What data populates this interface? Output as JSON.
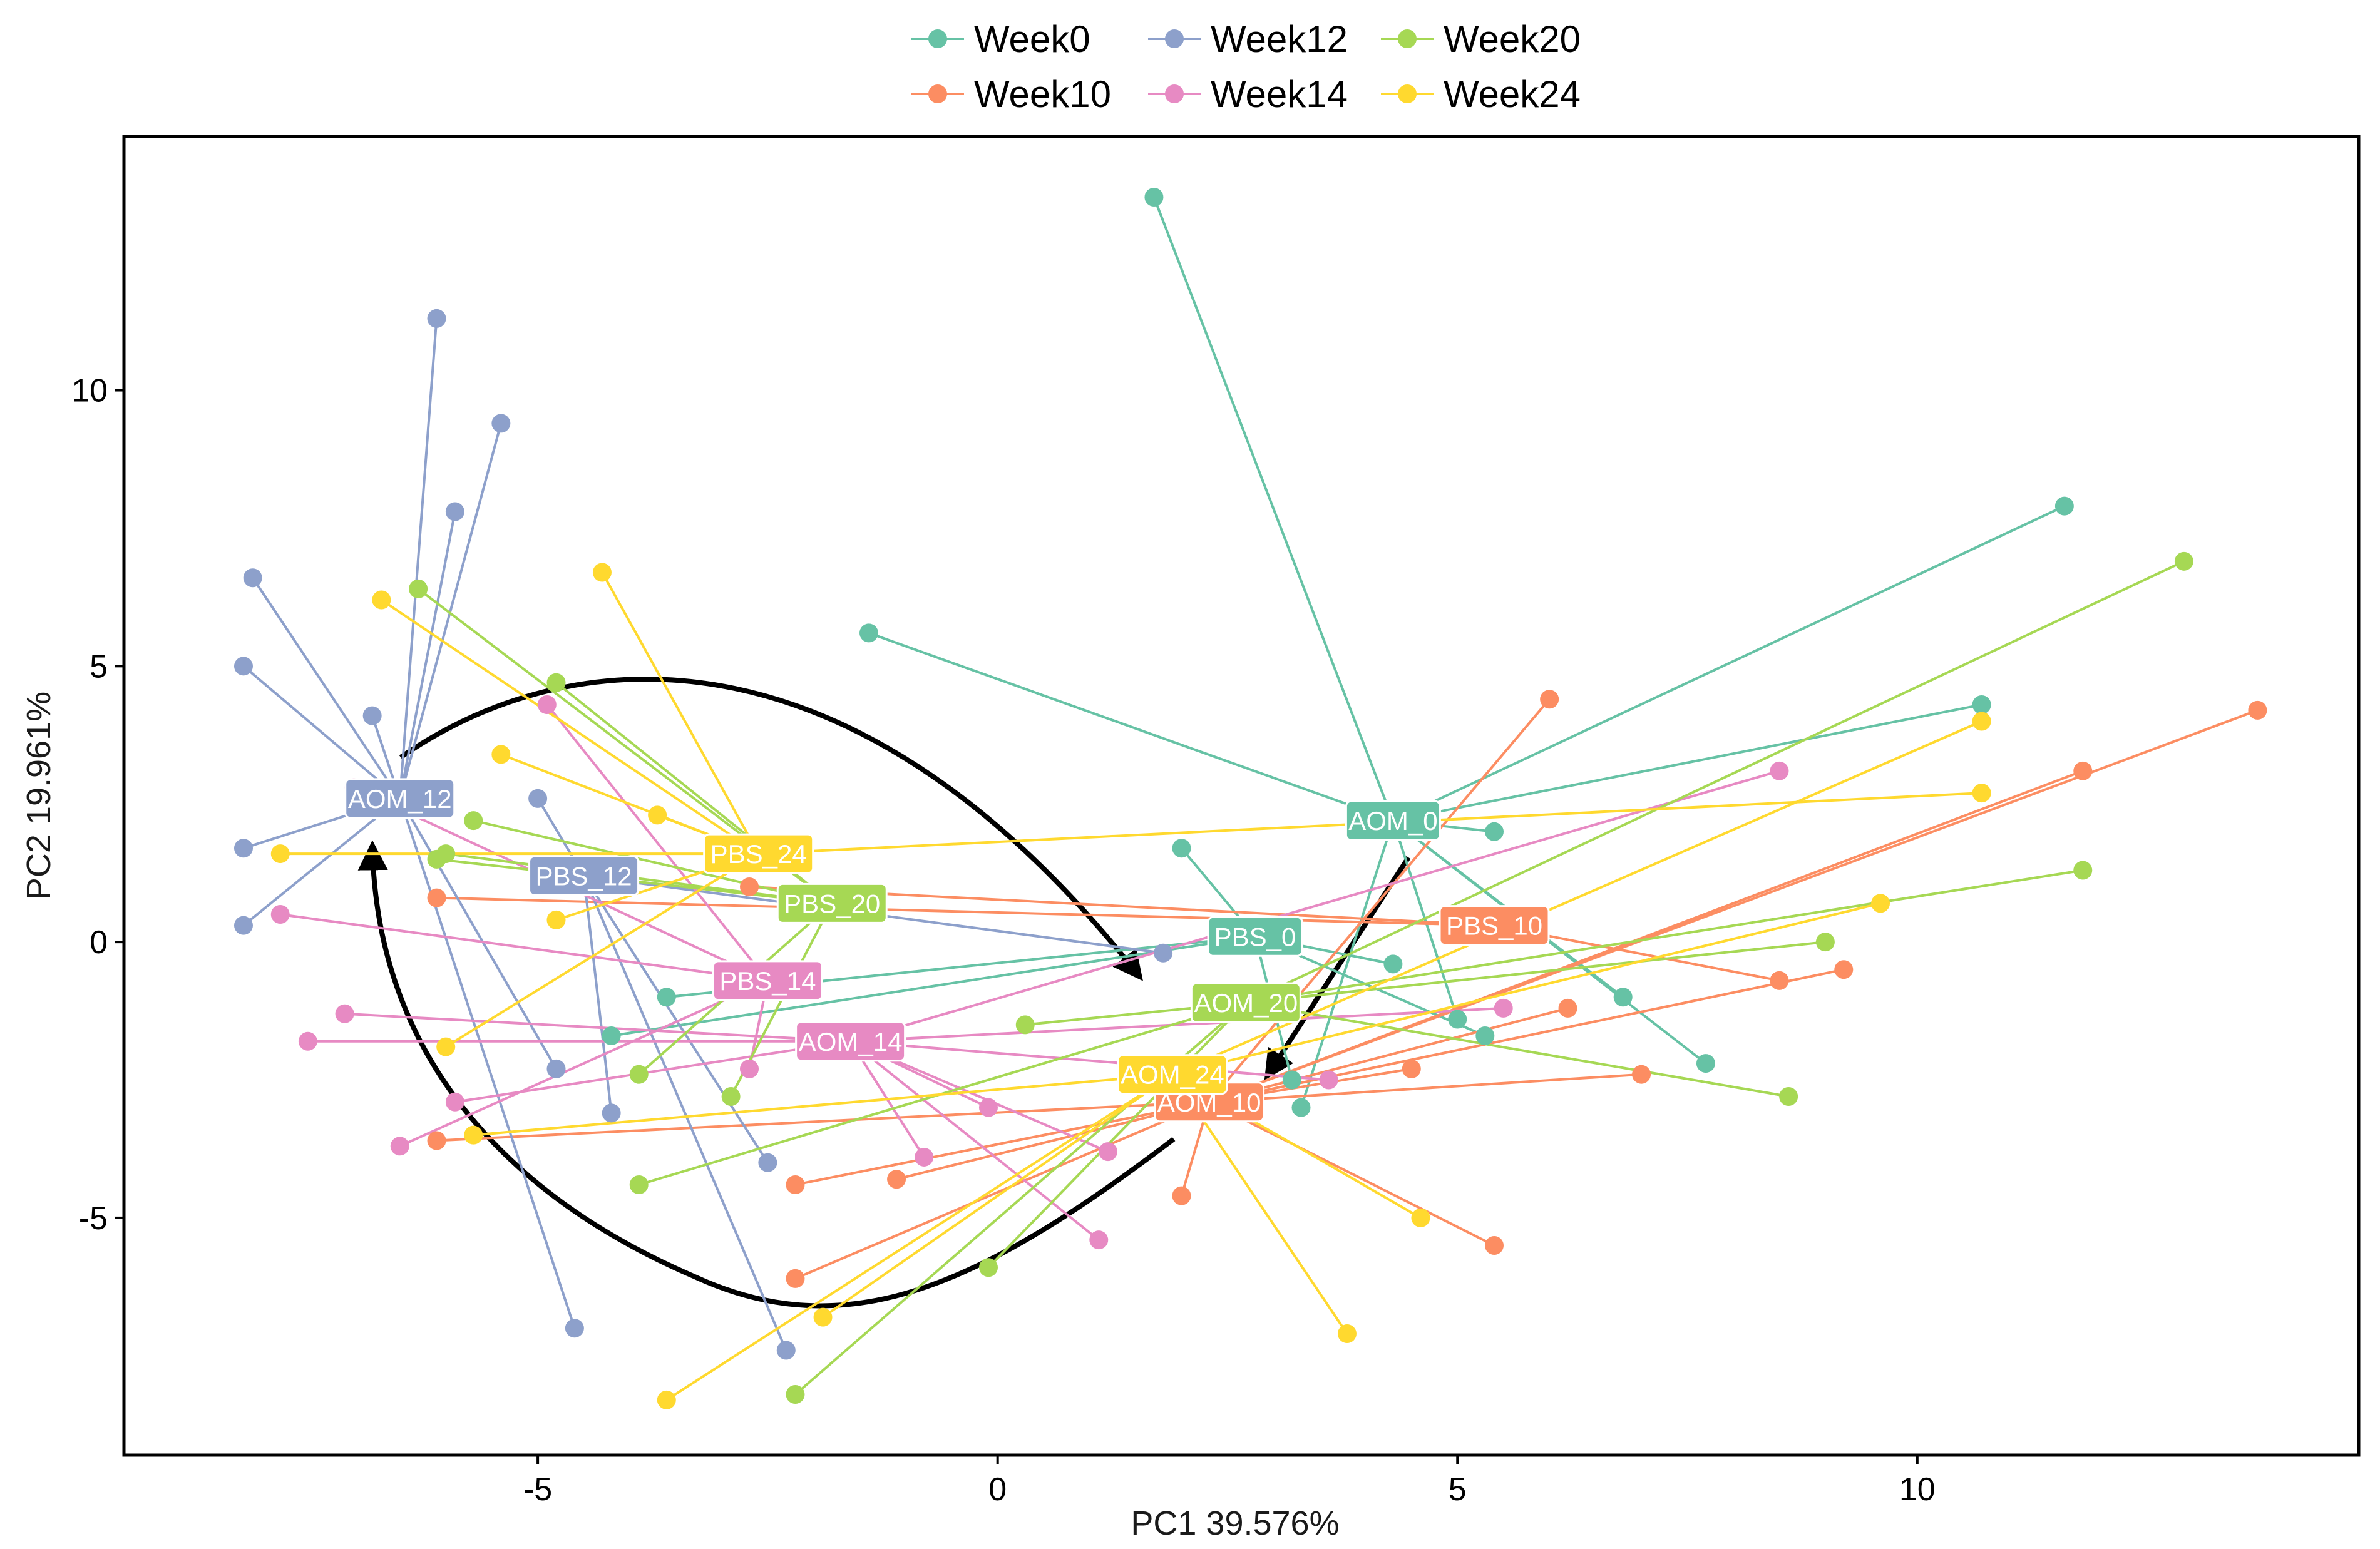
{
  "chart_data": {
    "type": "scatter",
    "subtype": "pca-spider",
    "xlabel": "PC1 39.576%",
    "ylabel": "PC2 19.961%",
    "xlim": [
      -9.5,
      14.8
    ],
    "ylim": [
      -9.3,
      14.6
    ],
    "xticks": [
      -5,
      0,
      5,
      10
    ],
    "yticks": [
      -5,
      0,
      5,
      10
    ],
    "grid": false,
    "legend_position": "top",
    "groups": [
      {
        "name": "Week0",
        "color": "#66C2A5"
      },
      {
        "name": "Week10",
        "color": "#FC8D62"
      },
      {
        "name": "Week12",
        "color": "#8DA0CB"
      },
      {
        "name": "Week14",
        "color": "#E78AC3"
      },
      {
        "name": "Week20",
        "color": "#A6D854"
      },
      {
        "name": "Week24",
        "color": "#FFD92F"
      }
    ],
    "centroids": [
      {
        "label": "AOM_0",
        "group": "Week0",
        "x": 4.3,
        "y": 2.2,
        "points": [
          [
            1.7,
            13.5
          ],
          [
            -1.4,
            5.6
          ],
          [
            11.6,
            7.9
          ],
          [
            10.7,
            4.3
          ],
          [
            5.4,
            2.0
          ],
          [
            6.8,
            -1.0
          ],
          [
            7.7,
            -2.2
          ],
          [
            5.0,
            -1.4
          ],
          [
            3.3,
            -3.0
          ]
        ]
      },
      {
        "label": "PBS_0",
        "group": "Week0",
        "x": 2.8,
        "y": 0.1,
        "points": [
          [
            2.0,
            1.7
          ],
          [
            -3.6,
            -1.0
          ],
          [
            -4.2,
            -1.7
          ],
          [
            5.3,
            -1.7
          ],
          [
            4.3,
            -0.4
          ],
          [
            3.2,
            -2.5
          ]
        ]
      },
      {
        "label": "AOM_10",
        "group": "Week10",
        "x": 2.3,
        "y": -2.9,
        "points": [
          [
            6.0,
            4.4
          ],
          [
            13.7,
            4.2
          ],
          [
            11.8,
            3.1
          ],
          [
            9.2,
            -0.5
          ],
          [
            6.2,
            -1.2
          ],
          [
            7.0,
            -2.4
          ],
          [
            4.5,
            -2.3
          ],
          [
            5.4,
            -5.5
          ],
          [
            2.0,
            -4.6
          ],
          [
            -2.2,
            -6.1
          ],
          [
            -2.2,
            -4.4
          ],
          [
            -1.1,
            -4.3
          ],
          [
            -6.1,
            -3.6
          ]
        ]
      },
      {
        "label": "PBS_10",
        "group": "Week10",
        "x": 5.4,
        "y": 0.3,
        "points": [
          [
            8.5,
            -0.7
          ],
          [
            -6.1,
            0.8
          ],
          [
            -2.7,
            1.0
          ]
        ]
      },
      {
        "label": "AOM_12",
        "group": "Week12",
        "x": -6.5,
        "y": 2.6,
        "points": [
          [
            -6.1,
            11.3
          ],
          [
            -5.4,
            9.4
          ],
          [
            -5.9,
            7.8
          ],
          [
            -8.1,
            6.6
          ],
          [
            -8.2,
            5.0
          ],
          [
            -6.8,
            4.1
          ],
          [
            -8.2,
            1.7
          ],
          [
            -8.2,
            0.3
          ],
          [
            -4.8,
            -2.3
          ],
          [
            -4.6,
            -7.0
          ]
        ]
      },
      {
        "label": "PBS_12",
        "group": "Week12",
        "x": -4.5,
        "y": 1.2,
        "points": [
          [
            -5.0,
            2.6
          ],
          [
            -4.2,
            -3.1
          ],
          [
            -2.5,
            -4.0
          ],
          [
            -2.3,
            -7.4
          ],
          [
            1.8,
            -0.2
          ]
        ]
      },
      {
        "label": "AOM_14",
        "group": "Week14",
        "x": -1.6,
        "y": -1.8,
        "points": [
          [
            8.5,
            3.1
          ],
          [
            5.5,
            -1.2
          ],
          [
            3.6,
            -2.5
          ],
          [
            1.2,
            -3.8
          ],
          [
            1.1,
            -5.4
          ],
          [
            -0.1,
            -3.0
          ],
          [
            -0.8,
            -3.9
          ],
          [
            -5.9,
            -2.9
          ],
          [
            -7.5,
            -1.8
          ],
          [
            -7.1,
            -1.3
          ]
        ]
      },
      {
        "label": "PBS_14",
        "group": "Week14",
        "x": -2.5,
        "y": -0.7,
        "points": [
          [
            -4.9,
            4.3
          ],
          [
            -7.0,
            2.8
          ],
          [
            -7.8,
            0.5
          ],
          [
            -6.5,
            -3.7
          ],
          [
            -2.7,
            -2.3
          ]
        ]
      },
      {
        "label": "AOM_20",
        "group": "Week20",
        "x": 2.7,
        "y": -1.1,
        "points": [
          [
            12.9,
            6.9
          ],
          [
            11.8,
            1.3
          ],
          [
            9.0,
            0.0
          ],
          [
            8.6,
            -2.8
          ],
          [
            0.3,
            -1.5
          ],
          [
            -0.1,
            -5.9
          ],
          [
            -2.2,
            -8.2
          ],
          [
            -3.9,
            -4.4
          ]
        ]
      },
      {
        "label": "PBS_20",
        "group": "Week20",
        "x": -1.8,
        "y": 0.7,
        "points": [
          [
            -6.3,
            6.4
          ],
          [
            -4.8,
            4.7
          ],
          [
            -5.7,
            2.2
          ],
          [
            -6.0,
            1.6
          ],
          [
            -6.1,
            1.5
          ],
          [
            -3.9,
            -2.4
          ],
          [
            -2.9,
            -2.8
          ]
        ]
      },
      {
        "label": "AOM_24",
        "group": "Week24",
        "x": 1.9,
        "y": -2.4,
        "points": [
          [
            10.7,
            4.0
          ],
          [
            9.6,
            0.7
          ],
          [
            4.6,
            -5.0
          ],
          [
            3.8,
            -7.1
          ],
          [
            -1.9,
            -6.8
          ],
          [
            -3.6,
            -8.3
          ],
          [
            -5.7,
            -3.5
          ]
        ]
      },
      {
        "label": "PBS_24",
        "group": "Week24",
        "x": -2.6,
        "y": 1.6,
        "points": [
          [
            -6.7,
            6.2
          ],
          [
            -4.3,
            6.7
          ],
          [
            -5.4,
            3.4
          ],
          [
            -3.7,
            2.3
          ],
          [
            -7.8,
            1.6
          ],
          [
            -4.8,
            0.4
          ],
          [
            -6.0,
            -1.9
          ],
          [
            10.7,
            2.7
          ]
        ]
      }
    ]
  }
}
